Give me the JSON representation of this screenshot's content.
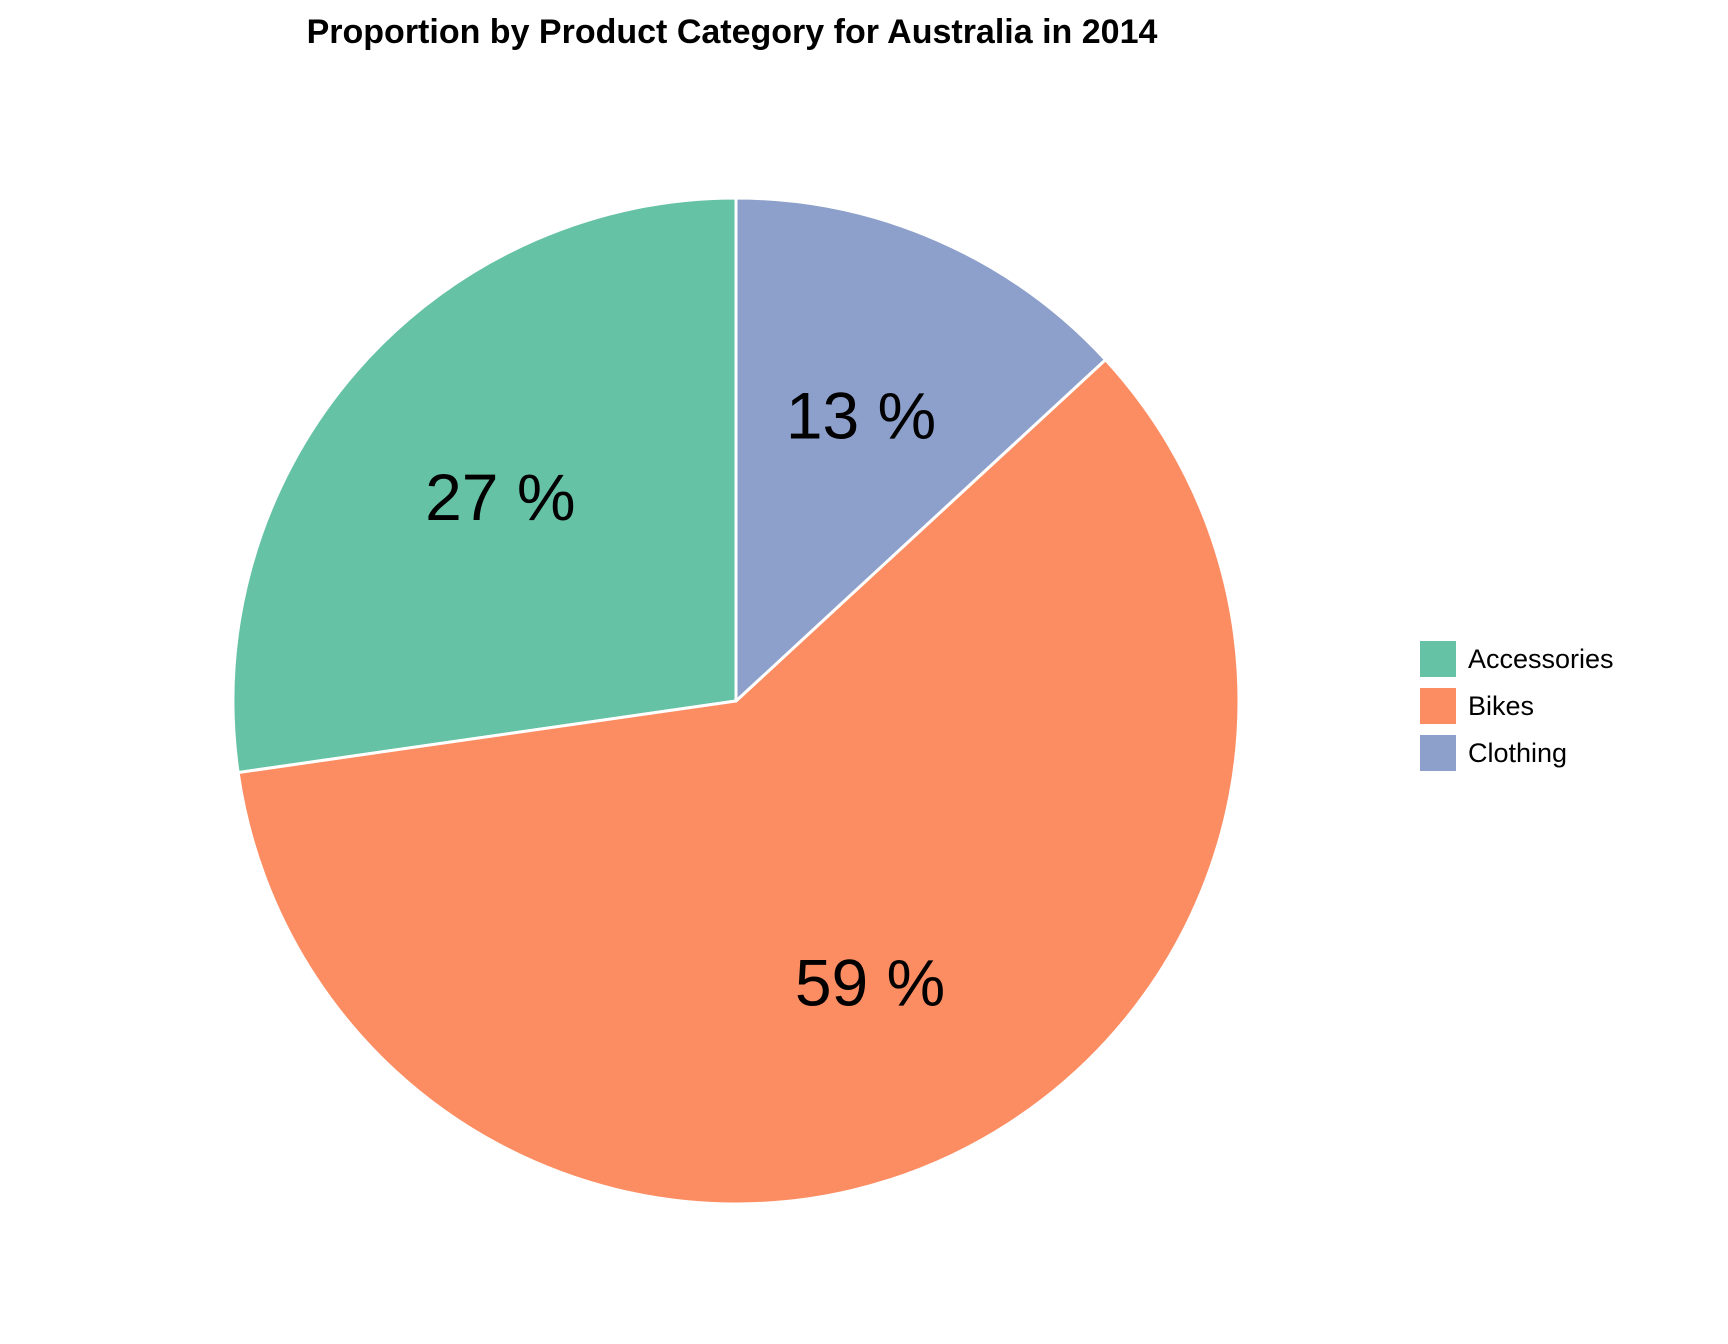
{
  "chart_data": {
    "type": "pie",
    "title": "Proportion by Product Category for Australia in 2014",
    "categories": [
      "Accessories",
      "Bikes",
      "Clothing"
    ],
    "values": [
      27,
      59,
      13
    ],
    "value_labels": [
      "27 %",
      "59 %",
      "13 %"
    ],
    "colors": [
      "#66c2a5",
      "#fc8d62",
      "#8da0cb"
    ],
    "legend_position": "right",
    "slice_order": "counterclockwise from top"
  }
}
